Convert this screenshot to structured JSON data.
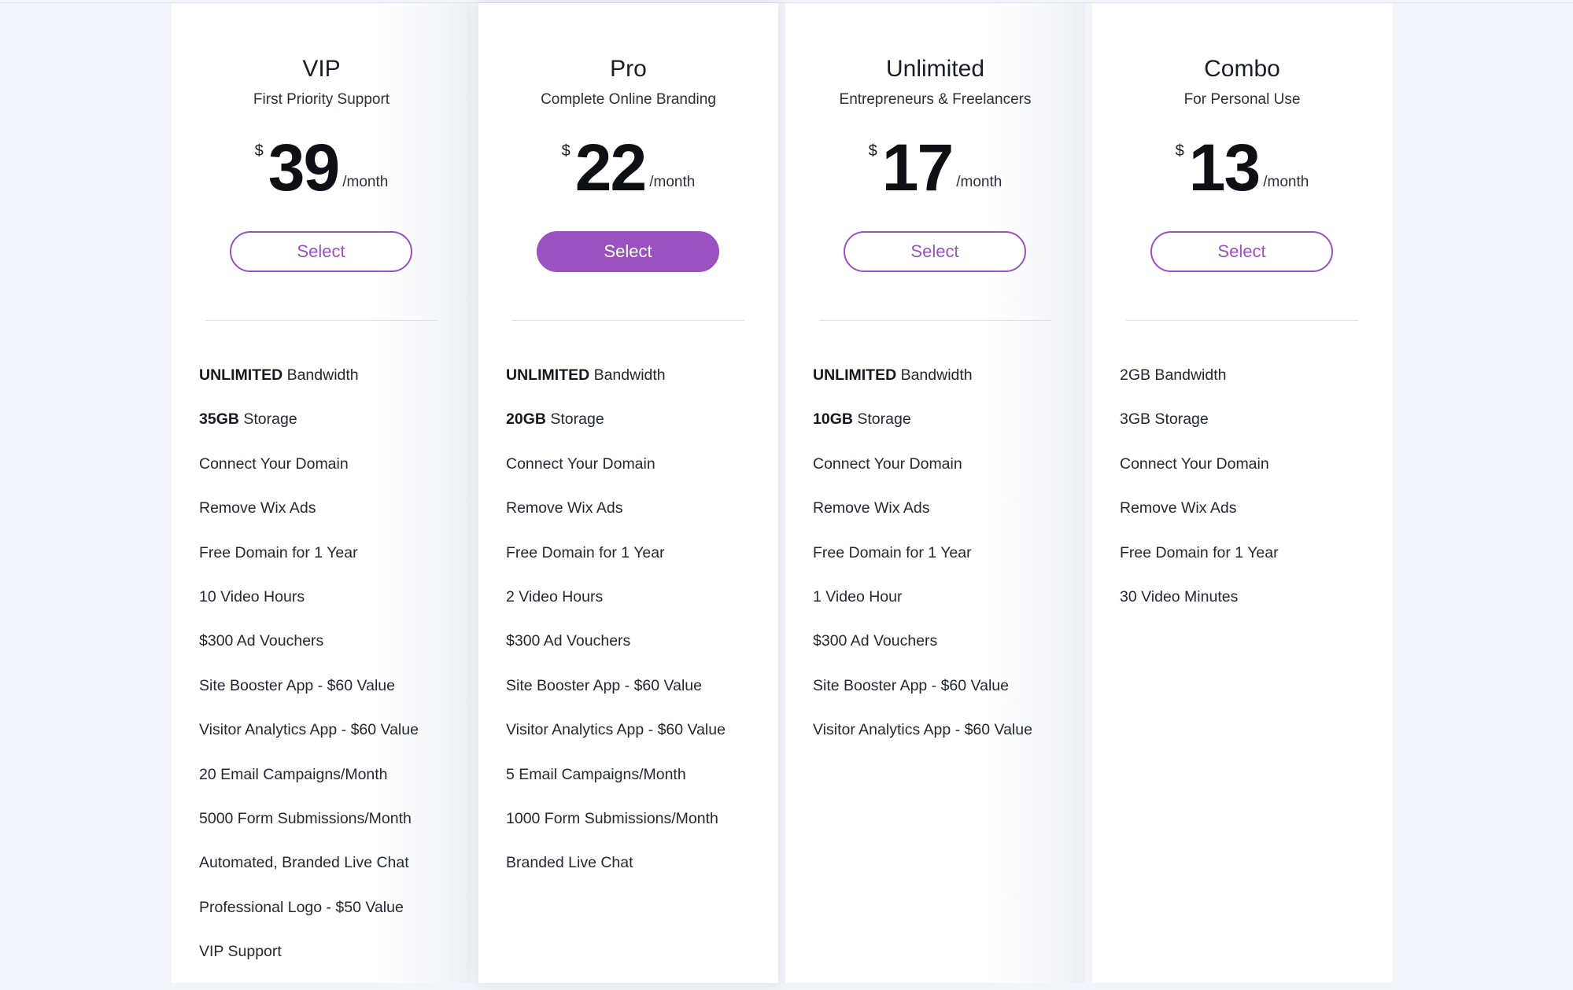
{
  "plans": [
    {
      "name": "VIP",
      "tagline": "First Priority Support",
      "currency": "$",
      "price": "39",
      "period": "/month",
      "select_label": "Select",
      "featured": false,
      "features": [
        {
          "bold": "UNLIMITED",
          "text": " Bandwidth"
        },
        {
          "bold": "35GB",
          "text": " Storage"
        },
        {
          "bold": "",
          "text": "Connect Your Domain"
        },
        {
          "bold": "",
          "text": "Remove Wix Ads"
        },
        {
          "bold": "",
          "text": "Free Domain for 1 Year"
        },
        {
          "bold": "",
          "text": "10 Video Hours"
        },
        {
          "bold": "",
          "text": "$300 Ad Vouchers"
        },
        {
          "bold": "",
          "text": "Site Booster App - $60 Value"
        },
        {
          "bold": "",
          "text": "Visitor Analytics App - $60 Value"
        },
        {
          "bold": "",
          "text": "20 Email Campaigns/Month"
        },
        {
          "bold": "",
          "text": "5000 Form Submissions/Month"
        },
        {
          "bold": "",
          "text": "Automated, Branded Live Chat"
        },
        {
          "bold": "",
          "text": "Professional Logo - $50 Value"
        },
        {
          "bold": "",
          "text": "VIP Support"
        }
      ]
    },
    {
      "name": "Pro",
      "tagline": "Complete Online Branding",
      "currency": "$",
      "price": "22",
      "period": "/month",
      "select_label": "Select",
      "featured": true,
      "features": [
        {
          "bold": "UNLIMITED",
          "text": " Bandwidth"
        },
        {
          "bold": "20GB",
          "text": " Storage"
        },
        {
          "bold": "",
          "text": "Connect Your Domain"
        },
        {
          "bold": "",
          "text": "Remove Wix Ads"
        },
        {
          "bold": "",
          "text": "Free Domain for 1 Year"
        },
        {
          "bold": "",
          "text": "2 Video Hours"
        },
        {
          "bold": "",
          "text": "$300 Ad Vouchers"
        },
        {
          "bold": "",
          "text": "Site Booster App - $60 Value"
        },
        {
          "bold": "",
          "text": "Visitor Analytics App - $60 Value"
        },
        {
          "bold": "",
          "text": "5 Email Campaigns/Month"
        },
        {
          "bold": "",
          "text": "1000 Form Submissions/Month"
        },
        {
          "bold": "",
          "text": "Branded Live Chat"
        }
      ]
    },
    {
      "name": "Unlimited",
      "tagline": "Entrepreneurs & Freelancers",
      "currency": "$",
      "price": "17",
      "period": "/month",
      "select_label": "Select",
      "featured": false,
      "features": [
        {
          "bold": "UNLIMITED",
          "text": " Bandwidth"
        },
        {
          "bold": "10GB",
          "text": " Storage"
        },
        {
          "bold": "",
          "text": "Connect Your Domain"
        },
        {
          "bold": "",
          "text": "Remove Wix Ads"
        },
        {
          "bold": "",
          "text": "Free Domain for 1 Year"
        },
        {
          "bold": "",
          "text": "1 Video Hour"
        },
        {
          "bold": "",
          "text": "$300 Ad Vouchers"
        },
        {
          "bold": "",
          "text": "Site Booster App - $60 Value"
        },
        {
          "bold": "",
          "text": "Visitor Analytics App - $60 Value"
        }
      ]
    },
    {
      "name": "Combo",
      "tagline": "For Personal Use",
      "currency": "$",
      "price": "13",
      "period": "/month",
      "select_label": "Select",
      "featured": false,
      "features": [
        {
          "bold": "",
          "text": "2GB Bandwidth"
        },
        {
          "bold": "",
          "text": "3GB Storage"
        },
        {
          "bold": "",
          "text": "Connect Your Domain"
        },
        {
          "bold": "",
          "text": "Remove Wix Ads"
        },
        {
          "bold": "",
          "text": "Free Domain for 1 Year"
        },
        {
          "bold": "",
          "text": "30 Video Minutes"
        }
      ]
    }
  ],
  "colors": {
    "accent": "#9b51c0",
    "page_background": "#f1f4f8",
    "card_background": "#ffffff"
  }
}
